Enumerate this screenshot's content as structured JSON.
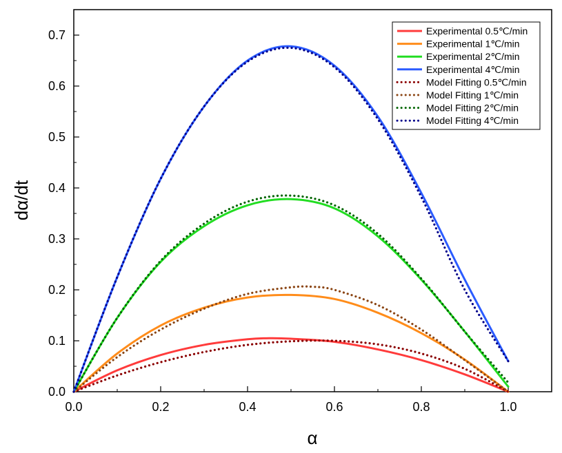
{
  "chart_data": {
    "type": "line",
    "xlabel": "α",
    "ylabel": "dα/dt",
    "xlim": [
      0.0,
      1.1
    ],
    "ylim": [
      0.0,
      0.75
    ],
    "x_ticks": [
      "0.0",
      "0.2",
      "0.4",
      "0.6",
      "0.8",
      "1.0"
    ],
    "y_ticks": [
      "0.0",
      "0.1",
      "0.2",
      "0.3",
      "0.4",
      "0.5",
      "0.6",
      "0.7"
    ],
    "grid": false,
    "legend_position": "top-right",
    "series": [
      {
        "name": "Experimental 0.5℃/min",
        "style": "solid",
        "color": "#ff3b3b",
        "x": [
          0.0,
          0.1,
          0.2,
          0.3,
          0.4,
          0.45,
          0.5,
          0.6,
          0.7,
          0.8,
          0.9,
          1.0
        ],
        "y": [
          0.0,
          0.042,
          0.072,
          0.092,
          0.103,
          0.105,
          0.104,
          0.098,
          0.083,
          0.062,
          0.034,
          0.0
        ]
      },
      {
        "name": "Experimental 1℃/min",
        "style": "solid",
        "color": "#ff8c1a",
        "x": [
          0.0,
          0.1,
          0.2,
          0.3,
          0.4,
          0.5,
          0.6,
          0.7,
          0.8,
          0.9,
          1.0
        ],
        "y": [
          0.0,
          0.075,
          0.13,
          0.165,
          0.185,
          0.19,
          0.182,
          0.155,
          0.115,
          0.063,
          0.0
        ]
      },
      {
        "name": "Experimental 2℃/min",
        "style": "solid",
        "color": "#22dd22",
        "x": [
          0.0,
          0.1,
          0.2,
          0.3,
          0.4,
          0.5,
          0.6,
          0.7,
          0.8,
          0.9,
          1.0
        ],
        "y": [
          0.0,
          0.145,
          0.255,
          0.325,
          0.366,
          0.378,
          0.36,
          0.305,
          0.22,
          0.118,
          0.01
        ]
      },
      {
        "name": "Experimental 4℃/min",
        "style": "solid",
        "color": "#2b5bff",
        "x": [
          0.0,
          0.1,
          0.2,
          0.3,
          0.4,
          0.5,
          0.6,
          0.7,
          0.8,
          0.9,
          1.0
        ],
        "y": [
          0.0,
          0.225,
          0.418,
          0.56,
          0.65,
          0.678,
          0.64,
          0.54,
          0.39,
          0.22,
          0.06
        ]
      },
      {
        "name": "Model Fitting 0.5℃/min",
        "style": "dotted",
        "color": "#8b0000",
        "x": [
          0.0,
          0.1,
          0.2,
          0.3,
          0.4,
          0.5,
          0.6,
          0.7,
          0.8,
          0.9,
          1.0
        ],
        "y": [
          0.0,
          0.032,
          0.058,
          0.078,
          0.092,
          0.099,
          0.1,
          0.093,
          0.075,
          0.045,
          0.0
        ]
      },
      {
        "name": "Model Fitting 1℃/min",
        "style": "dotted",
        "color": "#8b4513",
        "x": [
          0.0,
          0.1,
          0.2,
          0.3,
          0.4,
          0.5,
          0.55,
          0.6,
          0.7,
          0.8,
          0.9,
          1.0
        ],
        "y": [
          0.0,
          0.068,
          0.122,
          0.163,
          0.192,
          0.205,
          0.206,
          0.2,
          0.17,
          0.122,
          0.062,
          0.0
        ]
      },
      {
        "name": "Model Fitting 2℃/min",
        "style": "dotted",
        "color": "#006400",
        "x": [
          0.0,
          0.1,
          0.2,
          0.3,
          0.4,
          0.5,
          0.6,
          0.7,
          0.8,
          0.9,
          1.0
        ],
        "y": [
          0.0,
          0.145,
          0.257,
          0.33,
          0.373,
          0.385,
          0.366,
          0.31,
          0.222,
          0.118,
          0.018
        ]
      },
      {
        "name": "Model Fitting 4℃/min",
        "style": "dotted",
        "color": "#00008b",
        "x": [
          0.0,
          0.1,
          0.2,
          0.3,
          0.4,
          0.5,
          0.6,
          0.7,
          0.8,
          0.9,
          1.0
        ],
        "y": [
          0.0,
          0.225,
          0.418,
          0.56,
          0.648,
          0.675,
          0.637,
          0.535,
          0.382,
          0.2,
          0.06
        ]
      }
    ]
  }
}
